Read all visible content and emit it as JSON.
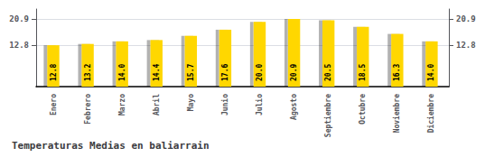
{
  "chart_data": {
    "type": "bar",
    "title": "Temperaturas Medias en baliarrain",
    "categories": [
      "Enero",
      "Febrero",
      "Marzo",
      "Abril",
      "Mayo",
      "Junio",
      "Julio",
      "Agosto",
      "Septiembre",
      "Octubre",
      "Noviembre",
      "Diciembre"
    ],
    "values": [
      12.8,
      13.2,
      14.0,
      14.4,
      15.7,
      17.6,
      20.0,
      20.9,
      20.5,
      18.5,
      16.3,
      14.0
    ],
    "value_labels": [
      "12.8",
      "13.2",
      "14.0",
      "14.4",
      "15.7",
      "17.6",
      "20.0",
      "20.9",
      "20.5",
      "18.5",
      "16.3",
      "14.0"
    ],
    "data_labels": true,
    "color": "#FFD700",
    "ylim": [
      0.0,
      24.0
    ],
    "yticks": [
      12.8,
      20.9
    ],
    "y2lim": [
      0.0,
      24.0
    ],
    "y2ticks": [
      12.8,
      20.9
    ],
    "grid": true
  }
}
